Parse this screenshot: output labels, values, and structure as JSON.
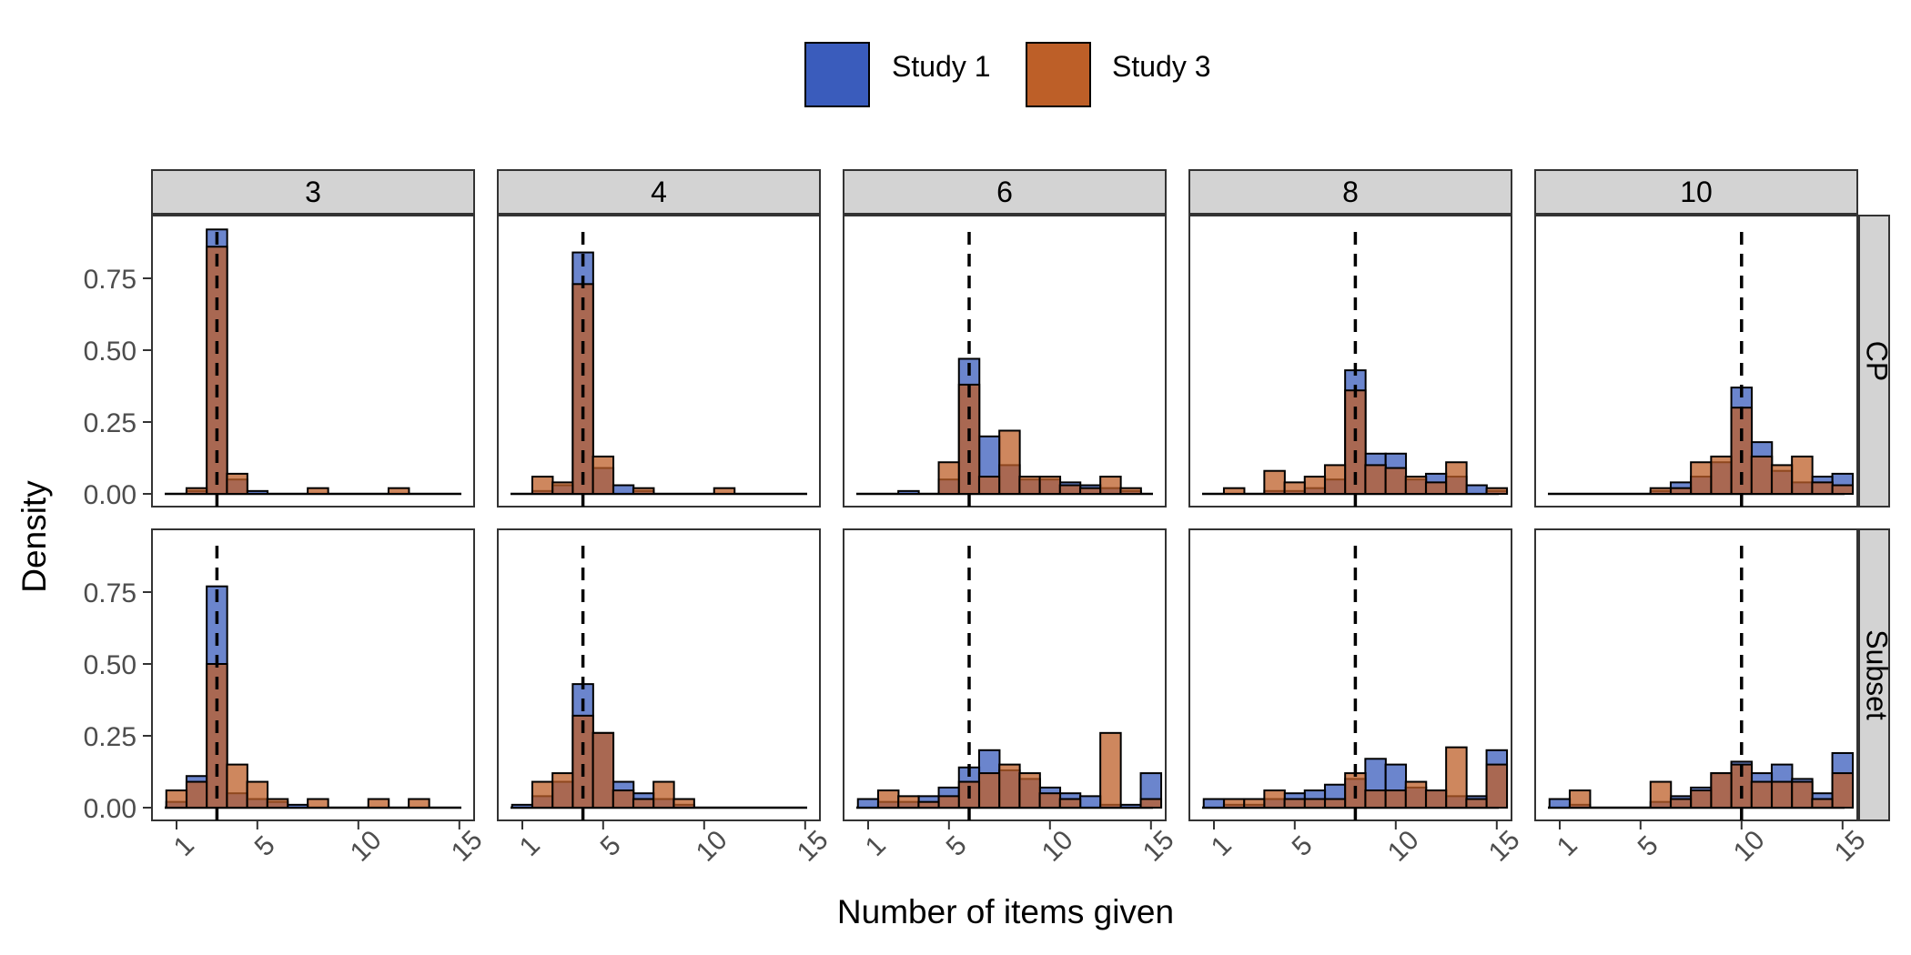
{
  "chart_data": {
    "type": "bar",
    "subtype": "faceted-histogram",
    "legend": {
      "placement": "top",
      "entries": [
        {
          "name": "Study 1",
          "color": "#3A5CBC"
        },
        {
          "name": "Study 3",
          "color": "#BD5F28"
        }
      ]
    },
    "xlabel": "Number of items given",
    "ylabel": "Density",
    "xlim": [
      0.5,
      15.5
    ],
    "ylim": [
      0,
      0.92
    ],
    "x_ticks": [
      "1",
      "5",
      "10",
      "15"
    ],
    "y_ticks": [
      "0.00",
      "0.25",
      "0.50",
      "0.75"
    ],
    "column_facets": [
      "3",
      "4",
      "6",
      "8",
      "10"
    ],
    "row_facets": [
      "CP",
      "Subset"
    ],
    "x": [
      1,
      2,
      3,
      4,
      5,
      6,
      7,
      8,
      9,
      10,
      11,
      12,
      13,
      14,
      15
    ],
    "panels": [
      {
        "row": "CP",
        "col": "3",
        "target": 3,
        "series": [
          {
            "name": "Study 1",
            "values": [
              0,
              0.01,
              0.92,
              0.05,
              0.01,
              0,
              0,
              0,
              0,
              0,
              0,
              0,
              0,
              0,
              0
            ]
          },
          {
            "name": "Study 3",
            "values": [
              0,
              0.02,
              0.86,
              0.07,
              0,
              0,
              0,
              0.02,
              0,
              0,
              0,
              0.02,
              0,
              0,
              0
            ]
          }
        ]
      },
      {
        "row": "CP",
        "col": "4",
        "target": 4,
        "series": [
          {
            "name": "Study 1",
            "values": [
              0,
              0.01,
              0.03,
              0.84,
              0.09,
              0.03,
              0.01,
              0,
              0,
              0,
              0,
              0,
              0,
              0,
              0
            ]
          },
          {
            "name": "Study 3",
            "values": [
              0,
              0.06,
              0.04,
              0.73,
              0.13,
              0,
              0.02,
              0,
              0,
              0,
              0.02,
              0,
              0,
              0,
              0
            ]
          }
        ]
      },
      {
        "row": "CP",
        "col": "6",
        "target": 6,
        "series": [
          {
            "name": "Study 1",
            "values": [
              0,
              0,
              0.01,
              0,
              0.05,
              0.47,
              0.2,
              0.1,
              0.05,
              0.05,
              0.04,
              0.03,
              0.02,
              0.01,
              0
            ]
          },
          {
            "name": "Study 3",
            "values": [
              0,
              0,
              0,
              0,
              0.11,
              0.38,
              0.06,
              0.22,
              0.06,
              0.06,
              0.03,
              0.02,
              0.06,
              0.02,
              0
            ]
          }
        ]
      },
      {
        "row": "CP",
        "col": "8",
        "target": 8,
        "series": [
          {
            "name": "Study 1",
            "values": [
              0,
              0,
              0,
              0.01,
              0.01,
              0.02,
              0.05,
              0.43,
              0.14,
              0.14,
              0.05,
              0.07,
              0.06,
              0.03,
              0.01
            ]
          },
          {
            "name": "Study 3",
            "values": [
              0,
              0.02,
              0,
              0.08,
              0.04,
              0.06,
              0.1,
              0.36,
              0.1,
              0.09,
              0.06,
              0.04,
              0.11,
              0,
              0.02
            ]
          }
        ]
      },
      {
        "row": "CP",
        "col": "10",
        "target": 10,
        "series": [
          {
            "name": "Study 1",
            "values": [
              0,
              0,
              0,
              0,
              0,
              0.01,
              0.04,
              0.06,
              0.11,
              0.37,
              0.18,
              0.08,
              0.04,
              0.06,
              0.07
            ]
          },
          {
            "name": "Study 3",
            "values": [
              0,
              0,
              0,
              0,
              0,
              0.02,
              0.02,
              0.11,
              0.13,
              0.3,
              0.13,
              0.1,
              0.13,
              0.04,
              0.03
            ]
          }
        ]
      },
      {
        "row": "Subset",
        "col": "3",
        "target": 3,
        "series": [
          {
            "name": "Study 1",
            "values": [
              0.02,
              0.11,
              0.77,
              0.05,
              0.03,
              0.02,
              0.01,
              0,
              0,
              0,
              0,
              0,
              0,
              0,
              0
            ]
          },
          {
            "name": "Study 3",
            "values": [
              0.06,
              0.09,
              0.5,
              0.15,
              0.09,
              0.03,
              0,
              0.03,
              0,
              0,
              0.03,
              0,
              0.03,
              0,
              0
            ]
          }
        ]
      },
      {
        "row": "Subset",
        "col": "4",
        "target": 4,
        "series": [
          {
            "name": "Study 1",
            "values": [
              0.01,
              0.04,
              0.09,
              0.43,
              0.26,
              0.09,
              0.05,
              0.03,
              0.01,
              0,
              0,
              0,
              0,
              0,
              0
            ]
          },
          {
            "name": "Study 3",
            "values": [
              0,
              0.09,
              0.12,
              0.32,
              0.26,
              0.06,
              0.03,
              0.09,
              0.03,
              0,
              0,
              0,
              0,
              0,
              0
            ]
          }
        ]
      },
      {
        "row": "Subset",
        "col": "6",
        "target": 6,
        "series": [
          {
            "name": "Study 1",
            "values": [
              0.03,
              0.02,
              0.02,
              0.04,
              0.07,
              0.14,
              0.2,
              0.13,
              0.1,
              0.07,
              0.05,
              0.04,
              0.01,
              0.01,
              0.12
            ]
          },
          {
            "name": "Study 3",
            "values": [
              0,
              0.06,
              0.04,
              0.02,
              0.04,
              0.09,
              0.12,
              0.15,
              0.12,
              0.05,
              0.03,
              0,
              0.26,
              0,
              0.03
            ]
          }
        ]
      },
      {
        "row": "Subset",
        "col": "8",
        "target": 8,
        "series": [
          {
            "name": "Study 1",
            "values": [
              0.03,
              0.01,
              0.01,
              0.03,
              0.05,
              0.06,
              0.08,
              0.1,
              0.17,
              0.15,
              0.07,
              0.06,
              0.04,
              0.04,
              0.2
            ]
          },
          {
            "name": "Study 3",
            "values": [
              0,
              0.03,
              0.03,
              0.06,
              0.03,
              0.03,
              0.03,
              0.12,
              0.06,
              0.06,
              0.09,
              0.06,
              0.21,
              0.03,
              0.15
            ]
          }
        ]
      },
      {
        "row": "Subset",
        "col": "10",
        "target": 10,
        "series": [
          {
            "name": "Study 1",
            "values": [
              0.03,
              0.01,
              0,
              0,
              0,
              0.02,
              0.04,
              0.07,
              0.12,
              0.16,
              0.12,
              0.15,
              0.1,
              0.05,
              0.19
            ]
          },
          {
            "name": "Study 3",
            "values": [
              0,
              0.06,
              0,
              0,
              0,
              0.09,
              0.03,
              0.06,
              0.12,
              0.15,
              0.09,
              0.09,
              0.09,
              0.03,
              0.12
            ]
          }
        ]
      }
    ]
  }
}
